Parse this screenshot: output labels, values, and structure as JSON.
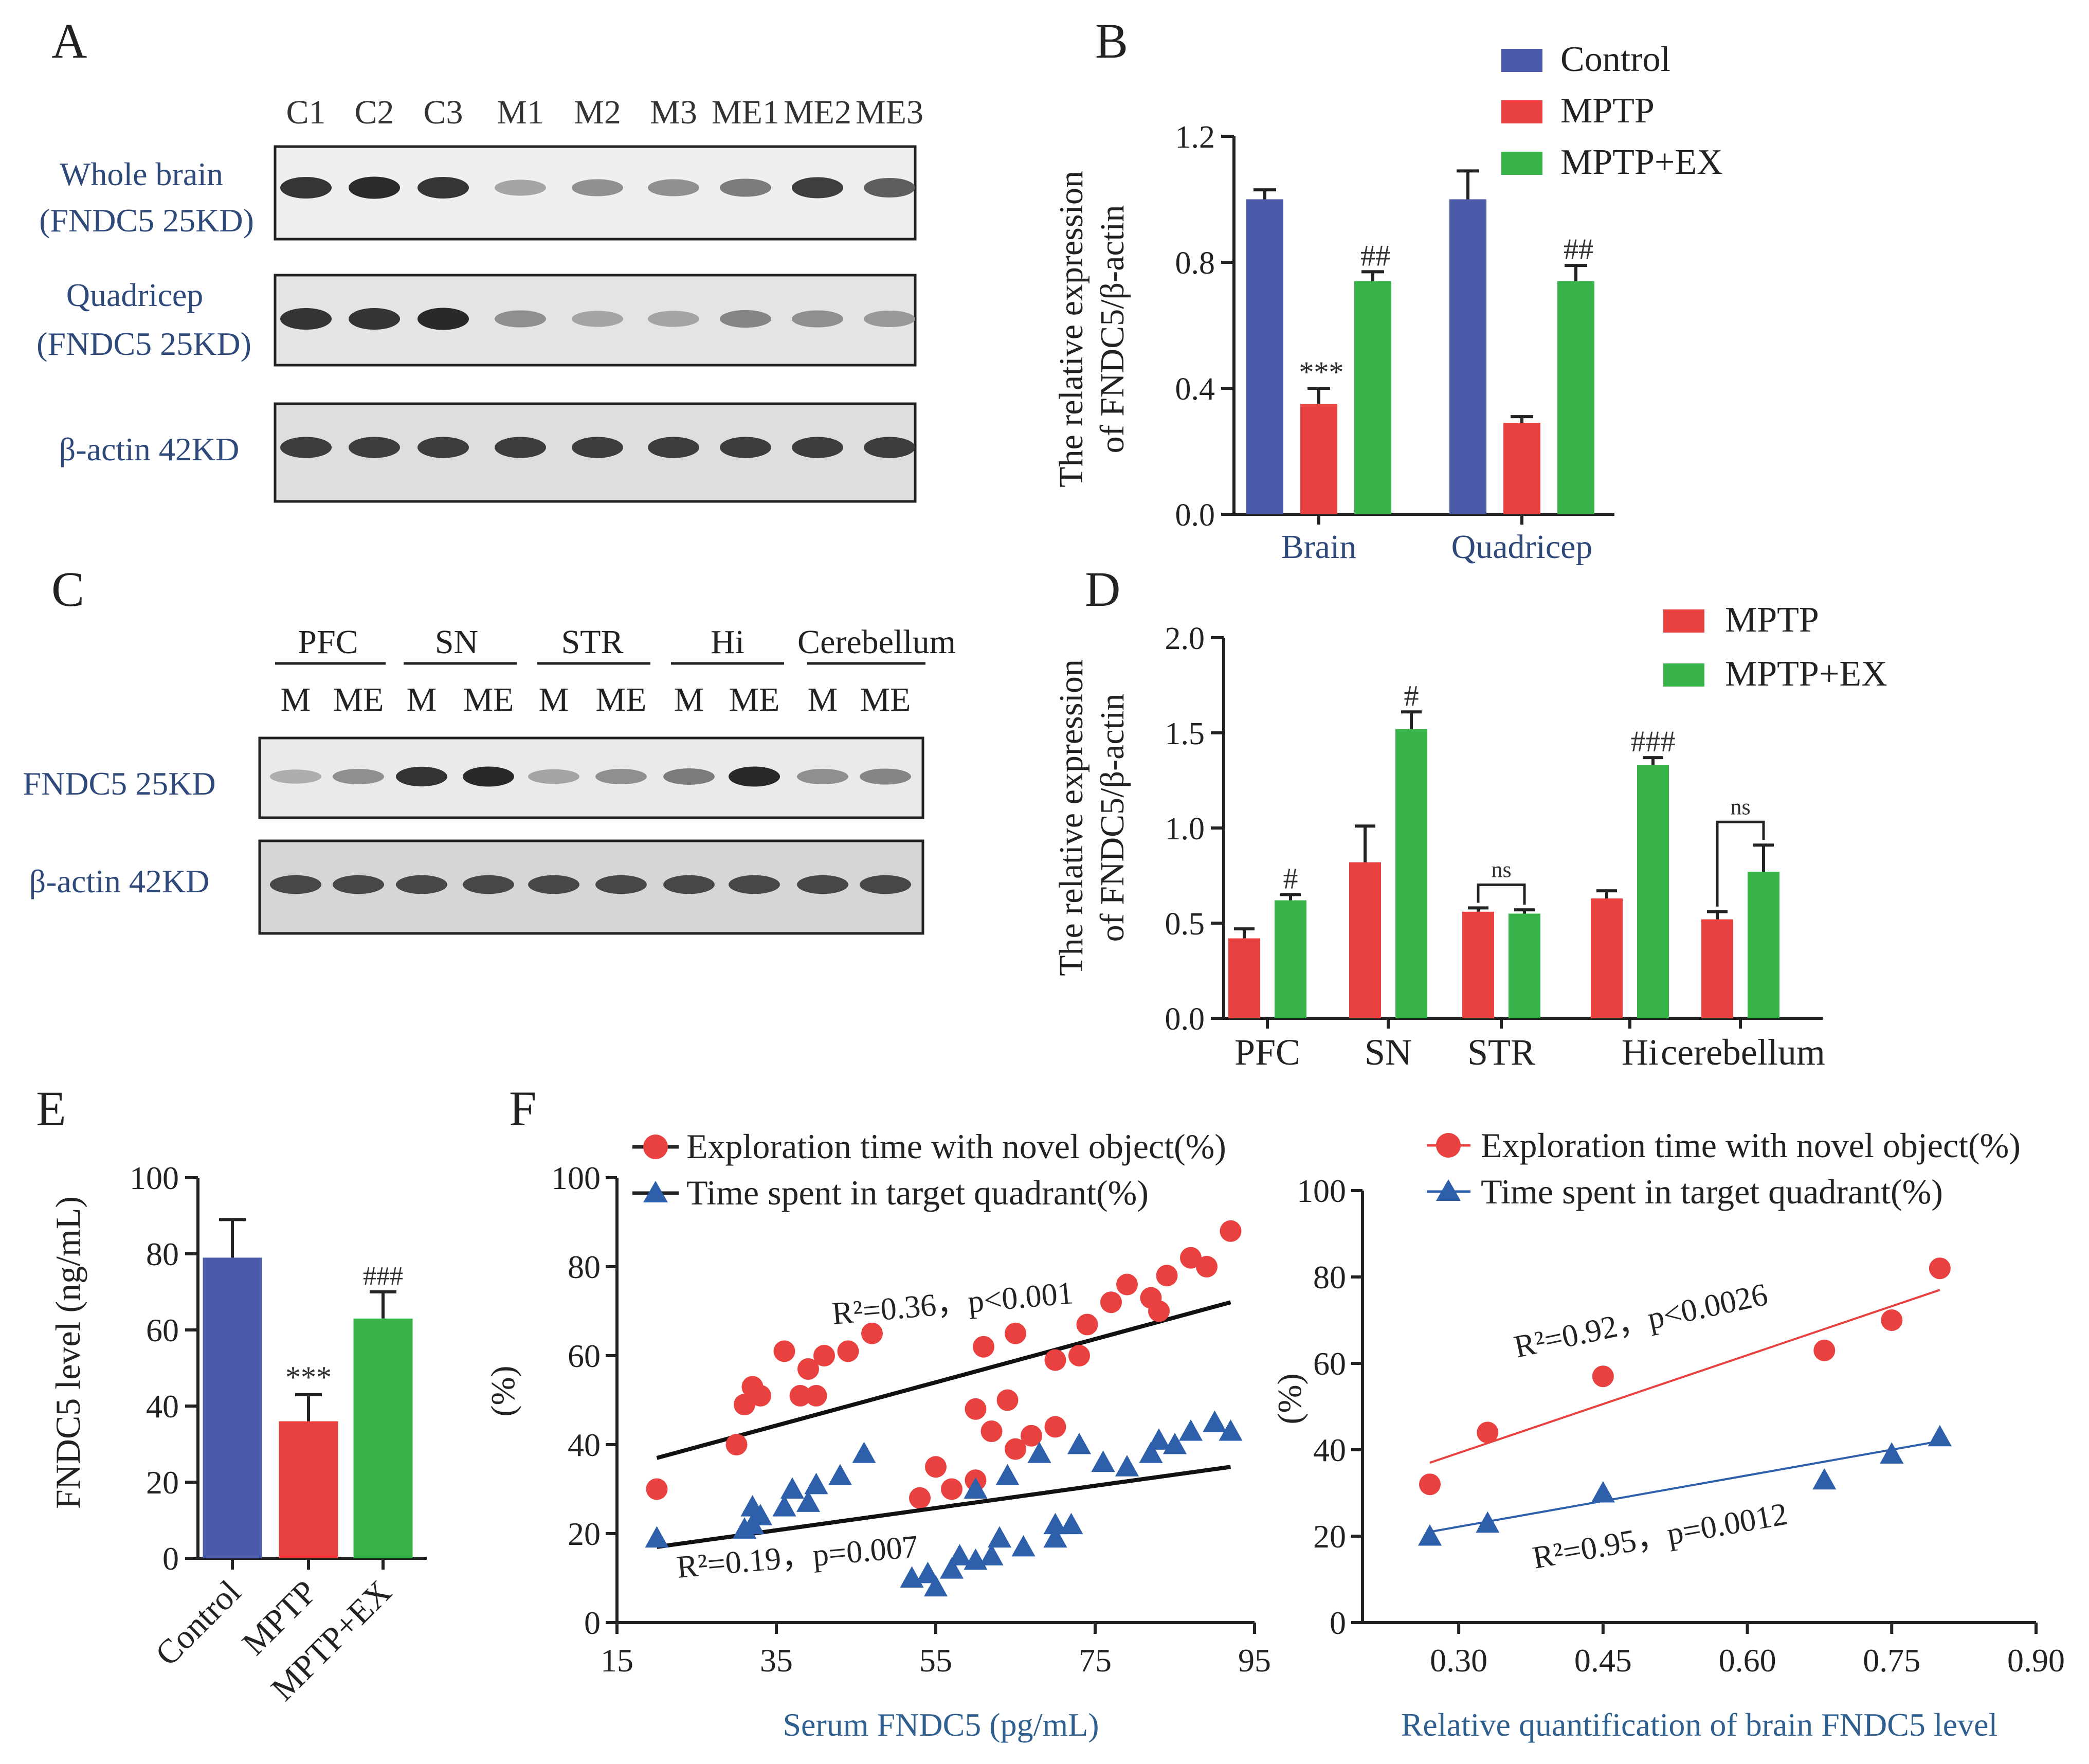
{
  "colors": {
    "control": "#4B5BAA",
    "mptp": "#E8413F",
    "mptp_ex": "#37B34A",
    "scatter_red": "#E8413F",
    "scatter_blue": "#2E5FAA",
    "axis_label_blue": "#2F5F8F",
    "ink": "#222222"
  },
  "panels": {
    "a": {
      "letter": "A"
    },
    "b": {
      "letter": "B"
    },
    "c": {
      "letter": "C"
    },
    "d": {
      "letter": "D"
    },
    "e": {
      "letter": "E"
    },
    "f": {
      "letter": "F"
    }
  },
  "blots": {
    "a": {
      "lanes": [
        "C1",
        "C2",
        "C3",
        "M1",
        "M2",
        "M3",
        "ME1",
        "ME2",
        "ME3"
      ],
      "row_labels": [
        [
          "Whole brain",
          "(FNDC5 25KD)"
        ],
        [
          "Quadricep",
          "(FNDC5 25KD)"
        ],
        [
          "β-actin 42KD"
        ]
      ],
      "band_intensity": [
        [
          0.9,
          0.95,
          0.9,
          0.35,
          0.45,
          0.45,
          0.55,
          0.85,
          0.7
        ],
        [
          0.9,
          0.9,
          0.95,
          0.45,
          0.35,
          0.35,
          0.5,
          0.45,
          0.4
        ],
        [
          0.85,
          0.85,
          0.85,
          0.85,
          0.85,
          0.85,
          0.85,
          0.85,
          0.85
        ]
      ]
    },
    "c": {
      "region_labels": [
        "PFC",
        "SN",
        "STR",
        "Hi",
        "Cerebellum"
      ],
      "lane_labels": [
        "M",
        "ME",
        "M",
        "ME",
        "M",
        "ME",
        "M",
        "ME",
        "M",
        "ME"
      ],
      "row_labels": [
        "FNDC5 25KD",
        "β-actin 42KD"
      ],
      "band_intensity": [
        [
          0.3,
          0.45,
          0.9,
          0.95,
          0.35,
          0.45,
          0.55,
          0.95,
          0.45,
          0.5
        ],
        [
          0.8,
          0.8,
          0.8,
          0.8,
          0.8,
          0.8,
          0.8,
          0.8,
          0.8,
          0.8
        ]
      ]
    }
  },
  "chart_data": [
    {
      "id": "B",
      "type": "bar",
      "categories": [
        "Brain",
        "Quadricep"
      ],
      "series": [
        {
          "name": "Control",
          "values": [
            1.0,
            1.0
          ],
          "errors": [
            0.03,
            0.09
          ],
          "annotations": [
            "",
            ""
          ]
        },
        {
          "name": "MPTP",
          "values": [
            0.35,
            0.29
          ],
          "errors": [
            0.05,
            0.02
          ],
          "annotations": [
            "***",
            ""
          ]
        },
        {
          "name": "MPTP+EX",
          "values": [
            0.74,
            0.74
          ],
          "errors": [
            0.03,
            0.05
          ],
          "annotations": [
            "##",
            "##"
          ]
        }
      ],
      "ylabel": [
        "The relative expression",
        "of FNDC5/β-actin"
      ],
      "ylim": [
        0,
        1.2
      ],
      "yticks": [
        "0.0",
        "0.4",
        "0.8",
        "1.2"
      ],
      "legend": "top-right"
    },
    {
      "id": "D",
      "type": "bar",
      "categories": [
        "PFC",
        "SN",
        "STR",
        "Hi",
        "cerebellum"
      ],
      "series": [
        {
          "name": "MPTP",
          "values": [
            0.42,
            0.82,
            0.56,
            0.63,
            0.52
          ],
          "errors": [
            0.05,
            0.19,
            0.02,
            0.04,
            0.04
          ]
        },
        {
          "name": "MPTP+EX",
          "values": [
            0.62,
            1.52,
            0.55,
            1.33,
            0.77
          ],
          "errors": [
            0.03,
            0.09,
            0.02,
            0.04,
            0.14
          ]
        }
      ],
      "annotations": [
        "#",
        "#",
        "ns",
        "###",
        "ns"
      ],
      "ylabel": [
        "The relative expression",
        "of FNDC5/β-actin"
      ],
      "ylim": [
        0,
        2.0
      ],
      "yticks": [
        "0.0",
        "0.5",
        "1.0",
        "1.5",
        "2.0"
      ],
      "legend": "top-right"
    },
    {
      "id": "E",
      "type": "bar",
      "categories": [
        "Control",
        "MPTP",
        "MPTP+EX"
      ],
      "values": [
        79,
        36,
        63
      ],
      "errors": [
        10,
        7,
        7
      ],
      "annotations": [
        "",
        "***",
        "###"
      ],
      "ylabel": "FNDC5 level (ng/mL)",
      "ylim": [
        0,
        100
      ],
      "yticks": [
        "0",
        "20",
        "40",
        "60",
        "80",
        "100"
      ]
    },
    {
      "id": "F1",
      "type": "scatter",
      "xlabel": "Serum FNDC5 (pg/mL)",
      "ylabel": "(%)",
      "xlim": [
        15,
        95
      ],
      "ylim": [
        0,
        100
      ],
      "xticks": [
        "15",
        "35",
        "55",
        "75",
        "95"
      ],
      "yticks": [
        "0",
        "20",
        "40",
        "60",
        "80",
        "100"
      ],
      "legend": "top-left",
      "series": [
        {
          "name": "Exploration time with novel object(%)",
          "marker": "circle",
          "points": [
            [
              20,
              30
            ],
            [
              30,
              40
            ],
            [
              31,
              49
            ],
            [
              32,
              53
            ],
            [
              33,
              51
            ],
            [
              36,
              61
            ],
            [
              38,
              51
            ],
            [
              39,
              57
            ],
            [
              40,
              51
            ],
            [
              41,
              60
            ],
            [
              44,
              61
            ],
            [
              47,
              65
            ],
            [
              53,
              28
            ],
            [
              55,
              35
            ],
            [
              57,
              30
            ],
            [
              60,
              32
            ],
            [
              60,
              48
            ],
            [
              61,
              62
            ],
            [
              62,
              43
            ],
            [
              64,
              50
            ],
            [
              65,
              65
            ],
            [
              65,
              39
            ],
            [
              67,
              42
            ],
            [
              70,
              44
            ],
            [
              70,
              59
            ],
            [
              73,
              60
            ],
            [
              74,
              67
            ],
            [
              77,
              72
            ],
            [
              79,
              76
            ],
            [
              82,
              73
            ],
            [
              83,
              70
            ],
            [
              84,
              78
            ],
            [
              87,
              82
            ],
            [
              89,
              80
            ],
            [
              92,
              88
            ]
          ],
          "fit": {
            "x": [
              20,
              92
            ],
            "y": [
              37,
              72
            ]
          },
          "stat": "R²=0.36，p<0.001"
        },
        {
          "name": "Time spent in target quadrant(%)",
          "marker": "triangle",
          "points": [
            [
              20,
              19
            ],
            [
              31,
              21
            ],
            [
              32,
              22
            ],
            [
              32,
              26
            ],
            [
              33,
              24
            ],
            [
              36,
              26
            ],
            [
              37,
              30
            ],
            [
              39,
              27
            ],
            [
              40,
              31
            ],
            [
              43,
              33
            ],
            [
              46,
              38
            ],
            [
              52,
              10
            ],
            [
              54,
              11
            ],
            [
              55,
              8
            ],
            [
              57,
              12
            ],
            [
              58,
              15
            ],
            [
              60,
              14
            ],
            [
              60,
              30
            ],
            [
              62,
              15
            ],
            [
              63,
              19
            ],
            [
              64,
              33
            ],
            [
              66,
              17
            ],
            [
              68,
              38
            ],
            [
              70,
              22
            ],
            [
              70,
              19
            ],
            [
              72,
              22
            ],
            [
              73,
              40
            ],
            [
              76,
              36
            ],
            [
              79,
              35
            ],
            [
              82,
              38
            ],
            [
              83,
              41
            ],
            [
              85,
              40
            ],
            [
              87,
              43
            ],
            [
              90,
              45
            ],
            [
              92,
              43
            ]
          ],
          "fit": {
            "x": [
              20,
              92
            ],
            "y": [
              17,
              35
            ]
          },
          "stat": "R²=0.19，p=0.007"
        }
      ]
    },
    {
      "id": "F2",
      "type": "scatter",
      "xlabel": "Relative quantification of brain FNDC5 level",
      "ylabel": "(%)",
      "xlim": [
        0.2,
        0.9
      ],
      "ylim": [
        0,
        100
      ],
      "xticks": [
        "0.30",
        "0.45",
        "0.60",
        "0.75",
        "0.90"
      ],
      "yticks": [
        "0",
        "20",
        "40",
        "60",
        "80",
        "100"
      ],
      "legend": "top",
      "series": [
        {
          "name": "Exploration time with novel object(%)",
          "marker": "circle",
          "points": [
            [
              0.27,
              32
            ],
            [
              0.33,
              44
            ],
            [
              0.45,
              57
            ],
            [
              0.68,
              63
            ],
            [
              0.75,
              70
            ],
            [
              0.8,
              82
            ]
          ],
          "fit": {
            "x": [
              0.27,
              0.8
            ],
            "y": [
              37,
              77
            ]
          },
          "stat": "R²=0.92，p<0.0026"
        },
        {
          "name": "Time spent in target quadrant(%)",
          "marker": "triangle",
          "points": [
            [
              0.27,
              20
            ],
            [
              0.33,
              23
            ],
            [
              0.45,
              30
            ],
            [
              0.68,
              33
            ],
            [
              0.75,
              39
            ],
            [
              0.8,
              43
            ]
          ],
          "fit": {
            "x": [
              0.27,
              0.8
            ],
            "y": [
              21,
              42
            ]
          },
          "stat": "R²=0.95，p=0.0012"
        }
      ]
    }
  ]
}
